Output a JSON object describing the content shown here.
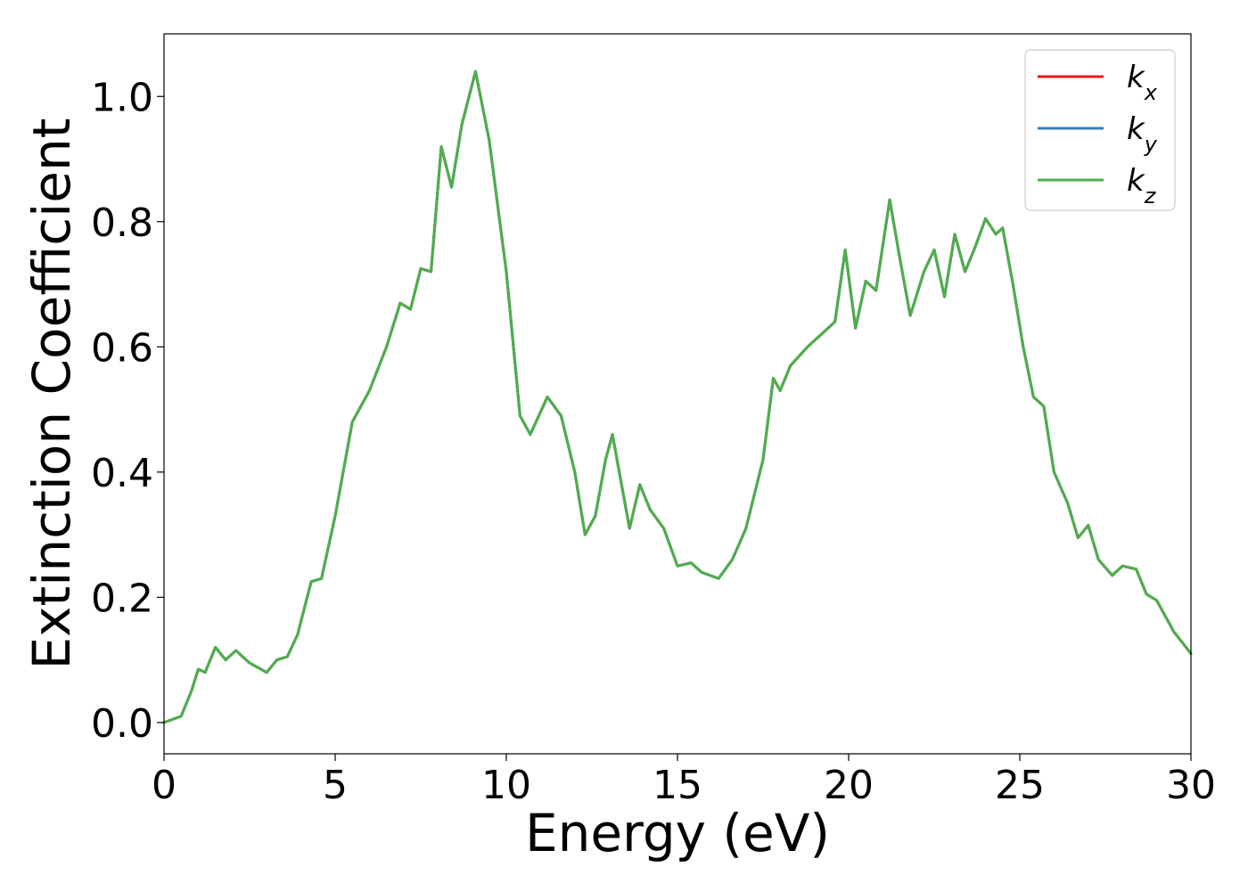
{
  "chart_data": {
    "type": "line",
    "title": "",
    "xlabel": "Energy (eV)",
    "ylabel": "Extinction Coefficient",
    "xlim": [
      0,
      30
    ],
    "ylim": [
      -0.05,
      1.1
    ],
    "x_ticks": [
      0,
      5,
      10,
      15,
      20,
      25,
      30
    ],
    "x_tick_labels": [
      "0",
      "5",
      "10",
      "15",
      "20",
      "25",
      "30"
    ],
    "y_ticks": [
      0.0,
      0.2,
      0.4,
      0.6,
      0.8,
      1.0
    ],
    "y_tick_labels": [
      "0.0",
      "0.2",
      "0.4",
      "0.6",
      "0.8",
      "1.0"
    ],
    "grid": false,
    "legend_position": "top-right",
    "x": [
      0,
      0.5,
      0.8,
      1.0,
      1.2,
      1.5,
      1.8,
      2.1,
      2.5,
      3.0,
      3.3,
      3.6,
      3.9,
      4.3,
      4.6,
      5.0,
      5.5,
      6.0,
      6.5,
      6.9,
      7.2,
      7.5,
      7.8,
      8.1,
      8.4,
      8.7,
      9.1,
      9.5,
      10.0,
      10.4,
      10.7,
      11.2,
      11.6,
      12.0,
      12.3,
      12.6,
      12.9,
      13.1,
      13.3,
      13.6,
      13.9,
      14.2,
      14.6,
      15.0,
      15.4,
      15.7,
      16.2,
      16.6,
      17.0,
      17.5,
      17.8,
      18.0,
      18.3,
      18.8,
      19.3,
      19.6,
      19.9,
      20.2,
      20.5,
      20.8,
      21.2,
      21.5,
      21.8,
      22.2,
      22.5,
      22.8,
      23.1,
      23.4,
      23.7,
      24.0,
      24.3,
      24.5,
      24.8,
      25.1,
      25.4,
      25.7,
      26.0,
      26.4,
      26.7,
      27.0,
      27.3,
      27.7,
      28.0,
      28.4,
      28.7,
      29.0,
      29.5,
      30.0
    ],
    "series": [
      {
        "name": "k_x",
        "legend_main": "k",
        "legend_sub": "x",
        "color": "#e41a1c",
        "values": [
          0.0,
          0.01,
          0.05,
          0.085,
          0.08,
          0.12,
          0.1,
          0.115,
          0.095,
          0.08,
          0.1,
          0.105,
          0.14,
          0.225,
          0.23,
          0.33,
          0.48,
          0.53,
          0.6,
          0.67,
          0.66,
          0.725,
          0.72,
          0.92,
          0.855,
          0.955,
          1.04,
          0.93,
          0.72,
          0.49,
          0.46,
          0.52,
          0.49,
          0.4,
          0.3,
          0.33,
          0.42,
          0.46,
          0.4,
          0.31,
          0.38,
          0.34,
          0.31,
          0.25,
          0.255,
          0.24,
          0.23,
          0.26,
          0.31,
          0.42,
          0.55,
          0.53,
          0.57,
          0.6,
          0.625,
          0.64,
          0.755,
          0.63,
          0.705,
          0.69,
          0.835,
          0.74,
          0.65,
          0.72,
          0.755,
          0.68,
          0.78,
          0.72,
          0.76,
          0.805,
          0.78,
          0.79,
          0.7,
          0.6,
          0.52,
          0.505,
          0.4,
          0.35,
          0.295,
          0.315,
          0.26,
          0.235,
          0.25,
          0.245,
          0.205,
          0.195,
          0.145,
          0.11
        ]
      },
      {
        "name": "k_y",
        "legend_main": "k",
        "legend_sub": "y",
        "color": "#377eb8",
        "values": [
          0.0,
          0.01,
          0.05,
          0.085,
          0.08,
          0.12,
          0.1,
          0.115,
          0.095,
          0.08,
          0.1,
          0.105,
          0.14,
          0.225,
          0.23,
          0.33,
          0.48,
          0.53,
          0.6,
          0.67,
          0.66,
          0.725,
          0.72,
          0.92,
          0.855,
          0.955,
          1.04,
          0.93,
          0.72,
          0.49,
          0.46,
          0.52,
          0.49,
          0.4,
          0.3,
          0.33,
          0.42,
          0.46,
          0.4,
          0.31,
          0.38,
          0.34,
          0.31,
          0.25,
          0.255,
          0.24,
          0.23,
          0.26,
          0.31,
          0.42,
          0.55,
          0.53,
          0.57,
          0.6,
          0.625,
          0.64,
          0.755,
          0.63,
          0.705,
          0.69,
          0.835,
          0.74,
          0.65,
          0.72,
          0.755,
          0.68,
          0.78,
          0.72,
          0.76,
          0.805,
          0.78,
          0.79,
          0.7,
          0.6,
          0.52,
          0.505,
          0.4,
          0.35,
          0.295,
          0.315,
          0.26,
          0.235,
          0.25,
          0.245,
          0.205,
          0.195,
          0.145,
          0.11
        ]
      },
      {
        "name": "k_z",
        "legend_main": "k",
        "legend_sub": "z",
        "color": "#4daf4a",
        "values": [
          0.0,
          0.01,
          0.05,
          0.085,
          0.08,
          0.12,
          0.1,
          0.115,
          0.095,
          0.08,
          0.1,
          0.105,
          0.14,
          0.225,
          0.23,
          0.33,
          0.48,
          0.53,
          0.6,
          0.67,
          0.66,
          0.725,
          0.72,
          0.92,
          0.855,
          0.955,
          1.04,
          0.93,
          0.72,
          0.49,
          0.46,
          0.52,
          0.49,
          0.4,
          0.3,
          0.33,
          0.42,
          0.46,
          0.4,
          0.31,
          0.38,
          0.34,
          0.31,
          0.25,
          0.255,
          0.24,
          0.23,
          0.26,
          0.31,
          0.42,
          0.55,
          0.53,
          0.57,
          0.6,
          0.625,
          0.64,
          0.755,
          0.63,
          0.705,
          0.69,
          0.835,
          0.74,
          0.65,
          0.72,
          0.755,
          0.68,
          0.78,
          0.72,
          0.76,
          0.805,
          0.78,
          0.79,
          0.7,
          0.6,
          0.52,
          0.505,
          0.4,
          0.35,
          0.295,
          0.315,
          0.26,
          0.235,
          0.25,
          0.245,
          0.205,
          0.195,
          0.145,
          0.11
        ]
      }
    ]
  }
}
